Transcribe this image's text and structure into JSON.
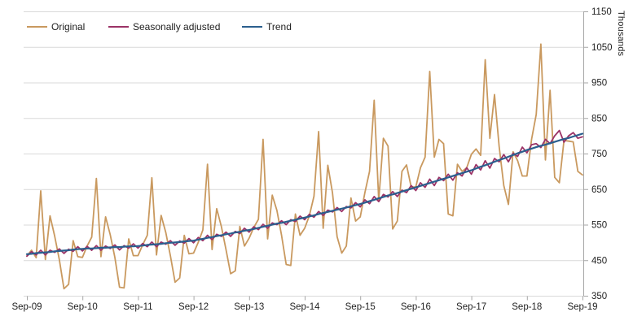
{
  "chart_data": {
    "type": "line",
    "title": "",
    "x_unit": "month",
    "x_start": "Sep-09",
    "x_end": "Sep-19",
    "x_tick_labels": [
      "Sep-09",
      "Sep-10",
      "Sep-11",
      "Sep-12",
      "Sep-13",
      "Sep-14",
      "Sep-15",
      "Sep-16",
      "Sep-17",
      "Sep-18",
      "Sep-19"
    ],
    "y_tick_labels": [
      "350",
      "450",
      "550",
      "650",
      "750",
      "850",
      "950",
      "1050",
      "1150"
    ],
    "ylim": [
      350,
      1150
    ],
    "y_step": 100,
    "ylabel": "Thousands",
    "xlabel": "",
    "grid": "horizontal",
    "legend_position": "top-left",
    "axis_color": "#a6a6a6",
    "grid_color": "#d9d9d9",
    "series": [
      {
        "name": "Original",
        "color": "#C9995F",
        "width": 1.8,
        "values": [
          462,
          478,
          457,
          645,
          452,
          575,
          518,
          452,
          370,
          382,
          505,
          460,
          458,
          490,
          515,
          680,
          460,
          572,
          522,
          458,
          374,
          372,
          510,
          463,
          463,
          493,
          520,
          682,
          465,
          576,
          528,
          462,
          388,
          400,
          520,
          468,
          470,
          500,
          535,
          720,
          480,
          595,
          545,
          480,
          412,
          420,
          545,
          490,
          512,
          542,
          565,
          790,
          510,
          633,
          590,
          520,
          438,
          435,
          580,
          520,
          540,
          575,
          630,
          812,
          540,
          717,
          640,
          516,
          470,
          490,
          625,
          560,
          572,
          640,
          700,
          900,
          618,
          793,
          771,
          538,
          560,
          700,
          718,
          656,
          656,
          710,
          740,
          981,
          740,
          790,
          778,
          580,
          575,
          720,
          700,
          710,
          748,
          763,
          745,
          1014,
          793,
          916,
          770,
          660,
          607,
          755,
          730,
          687,
          687,
          790,
          860,
          1058,
          732,
          928,
          683,
          668,
          787,
          785,
          783,
          700,
          690
        ]
      },
      {
        "name": "Seasonally adjusted",
        "color": "#9B3266",
        "width": 1.8,
        "values": [
          461,
          474,
          465,
          478,
          465,
          478,
          472,
          482,
          469,
          481,
          475,
          488,
          476,
          489,
          478,
          491,
          478,
          490,
          483,
          493,
          479,
          491,
          484,
          496,
          484,
          497,
          488,
          501,
          488,
          501,
          495,
          505,
          492,
          504,
          498,
          511,
          499,
          514,
          505,
          520,
          508,
          523,
          517,
          529,
          517,
          531,
          525,
          540,
          529,
          544,
          536,
          551,
          540,
          555,
          550,
          561,
          550,
          564,
          559,
          574,
          564,
          579,
          571,
          587,
          576,
          591,
          586,
          598,
          587,
          601,
          597,
          612,
          600,
          620,
          609,
          629,
          615,
          635,
          628,
          643,
          629,
          647,
          640,
          660,
          646,
          668,
          655,
          678,
          660,
          683,
          674,
          692,
          675,
          696,
          687,
          710,
          692,
          719,
          704,
          730,
          709,
          736,
          727,
          747,
          727,
          751,
          742,
          768,
          752,
          775,
          778,
          767,
          790,
          778,
          800,
          815,
          782,
          800,
          809,
          793,
          797
        ]
      },
      {
        "name": "Trend",
        "color": "#2B5F8E",
        "width": 2.2,
        "values": [
          467,
          468,
          470,
          471,
          472,
          473,
          475,
          476,
          477,
          478,
          480,
          481,
          482,
          483,
          483,
          484,
          485,
          485,
          486,
          487,
          487,
          488,
          489,
          489,
          490,
          491,
          493,
          494,
          495,
          496,
          498,
          499,
          500,
          501,
          503,
          504,
          505,
          508,
          510,
          513,
          515,
          518,
          520,
          523,
          525,
          528,
          530,
          533,
          535,
          538,
          541,
          544,
          547,
          550,
          553,
          555,
          558,
          561,
          564,
          567,
          570,
          573,
          576,
          580,
          583,
          586,
          589,
          592,
          595,
          598,
          602,
          605,
          608,
          612,
          616,
          620,
          624,
          628,
          632,
          635,
          639,
          643,
          647,
          651,
          655,
          659,
          663,
          667,
          671,
          675,
          679,
          683,
          687,
          691,
          695,
          699,
          703,
          708,
          713,
          717,
          722,
          727,
          732,
          736,
          741,
          746,
          751,
          755,
          760,
          764,
          768,
          772,
          775,
          779,
          783,
          787,
          791,
          794,
          798,
          802,
          806
        ]
      }
    ]
  }
}
